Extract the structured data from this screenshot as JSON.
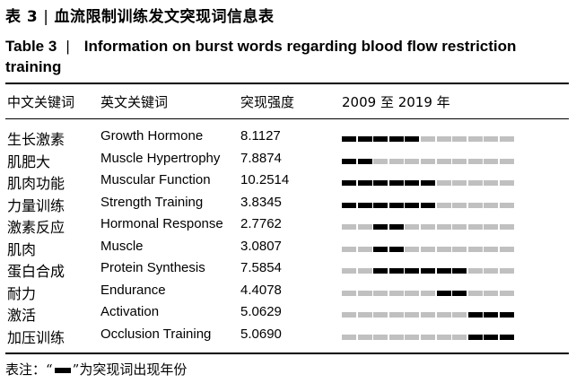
{
  "caption": {
    "cn_label": "表 3",
    "cn_separator": "|",
    "cn_text": "血流限制训练发文突现词信息表",
    "en_label": "Table 3",
    "en_separator": "|",
    "en_text": "Information on burst words regarding blood flow restriction training"
  },
  "headers": {
    "cn_keyword": "中文关键词",
    "en_keyword": "英文关键词",
    "strength": "突现强度",
    "years": "2009 至 2019 年"
  },
  "years": [
    2009,
    2010,
    2011,
    2012,
    2013,
    2014,
    2015,
    2016,
    2017,
    2018,
    2019
  ],
  "colors": {
    "burst": "#000000",
    "inactive": "#c0c0c0"
  },
  "rows": [
    {
      "cn": "生长激素",
      "en": "Growth Hormone",
      "strength": "8.1127",
      "burst_begin": 2009,
      "burst_end": 2013
    },
    {
      "cn": "肌肥大",
      "en": "Muscle Hypertrophy",
      "strength": "7.8874",
      "burst_begin": 2009,
      "burst_end": 2010
    },
    {
      "cn": "肌肉功能",
      "en": "Muscular Function",
      "strength": "10.2514",
      "burst_begin": 2009,
      "burst_end": 2014
    },
    {
      "cn": "力量训练",
      "en": "Strength Training",
      "strength": "3.8345",
      "burst_begin": 2009,
      "burst_end": 2014
    },
    {
      "cn": "激素反应",
      "en": "Hormonal Response",
      "strength": "2.7762",
      "burst_begin": 2011,
      "burst_end": 2012
    },
    {
      "cn": "肌肉",
      "en": "Muscle",
      "strength": "3.0807",
      "burst_begin": 2011,
      "burst_end": 2012
    },
    {
      "cn": "蛋白合成",
      "en": "Protein Synthesis",
      "strength": "7.5854",
      "burst_begin": 2011,
      "burst_end": 2016
    },
    {
      "cn": "耐力",
      "en": "Endurance",
      "strength": "4.4078",
      "burst_begin": 2015,
      "burst_end": 2016
    },
    {
      "cn": "激活",
      "en": "Activation",
      "strength": "5.0629",
      "burst_begin": 2017,
      "burst_end": 2019
    },
    {
      "cn": "加压训练",
      "en": "Occlusion Training",
      "strength": "5.0690",
      "burst_begin": 2017,
      "burst_end": 2019
    }
  ],
  "note": {
    "prefix": "表注：“",
    "suffix": "”为突现词出现年份"
  }
}
